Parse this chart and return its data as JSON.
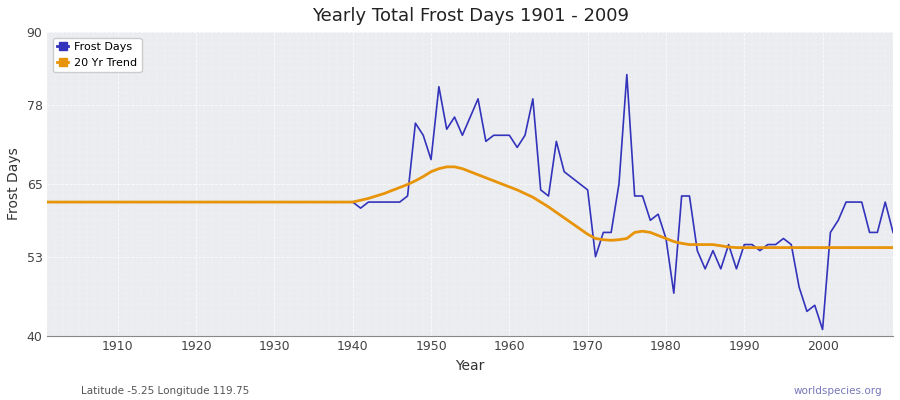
{
  "title": "Yearly Total Frost Days 1901 - 2009",
  "xlabel": "Year",
  "ylabel": "Frost Days",
  "subtitle": "Latitude -5.25 Longitude 119.75",
  "watermark": "worldspecies.org",
  "ylim": [
    40,
    90
  ],
  "xlim": [
    1901,
    2009
  ],
  "yticks": [
    40,
    53,
    65,
    78,
    90
  ],
  "xticks": [
    1910,
    1920,
    1930,
    1940,
    1950,
    1960,
    1970,
    1980,
    1990,
    2000
  ],
  "bg_color": "#eaecf0",
  "fig_color": "#ffffff",
  "line_color": "#3333bb",
  "trend_color": "#e8940a",
  "frost_years": [
    1901,
    1902,
    1903,
    1904,
    1905,
    1906,
    1907,
    1908,
    1909,
    1910,
    1911,
    1912,
    1913,
    1914,
    1915,
    1916,
    1917,
    1918,
    1919,
    1920,
    1921,
    1922,
    1923,
    1924,
    1925,
    1926,
    1927,
    1928,
    1929,
    1930,
    1931,
    1932,
    1933,
    1934,
    1935,
    1936,
    1937,
    1938,
    1939,
    1940,
    1941,
    1942,
    1943,
    1944,
    1945,
    1946,
    1947,
    1948,
    1949,
    1950,
    1951,
    1952,
    1953,
    1954,
    1955,
    1956,
    1957,
    1958,
    1959,
    1960,
    1961,
    1962,
    1963,
    1964,
    1965,
    1966,
    1967,
    1968,
    1969,
    1970,
    1971,
    1972,
    1973,
    1974,
    1975,
    1976,
    1977,
    1978,
    1979,
    1980,
    1981,
    1982,
    1983,
    1984,
    1985,
    1986,
    1987,
    1988,
    1989,
    1990,
    1991,
    1992,
    1993,
    1994,
    1995,
    1996,
    1997,
    1998,
    1999,
    2000,
    2001,
    2002,
    2003,
    2004,
    2005,
    2006,
    2007,
    2008,
    2009
  ],
  "frost_vals": [
    62,
    62,
    62,
    62,
    62,
    62,
    62,
    62,
    62,
    62,
    62,
    62,
    62,
    62,
    62,
    62,
    62,
    62,
    62,
    62,
    62,
    62,
    62,
    62,
    62,
    62,
    62,
    62,
    62,
    62,
    62,
    62,
    62,
    62,
    62,
    62,
    62,
    62,
    62,
    62,
    61,
    62,
    62,
    62,
    62,
    62,
    63,
    75,
    73,
    69,
    81,
    74,
    76,
    73,
    76,
    79,
    72,
    73,
    73,
    73,
    71,
    73,
    79,
    64,
    63,
    72,
    67,
    66,
    65,
    64,
    53,
    57,
    57,
    65,
    83,
    63,
    63,
    59,
    60,
    56,
    47,
    63,
    63,
    54,
    51,
    54,
    51,
    55,
    51,
    55,
    55,
    54,
    55,
    55,
    56,
    55,
    48,
    44,
    45,
    41,
    57,
    59,
    62,
    62,
    62,
    57,
    57,
    62,
    57
  ],
  "trend_years": [
    1901,
    1902,
    1903,
    1904,
    1905,
    1906,
    1907,
    1908,
    1909,
    1910,
    1911,
    1912,
    1913,
    1914,
    1915,
    1916,
    1917,
    1918,
    1919,
    1920,
    1921,
    1922,
    1923,
    1924,
    1925,
    1926,
    1927,
    1928,
    1929,
    1930,
    1931,
    1932,
    1933,
    1934,
    1935,
    1936,
    1937,
    1938,
    1939,
    1940,
    1941,
    1942,
    1943,
    1944,
    1945,
    1946,
    1947,
    1948,
    1949,
    1950,
    1951,
    1952,
    1953,
    1954,
    1955,
    1956,
    1957,
    1958,
    1959,
    1960,
    1961,
    1962,
    1963,
    1964,
    1965,
    1966,
    1967,
    1968,
    1969,
    1970,
    1971,
    1972,
    1973,
    1974,
    1975,
    1976,
    1977,
    1978,
    1979,
    1980,
    1981,
    1982,
    1983,
    1984,
    1985,
    1986,
    1987,
    1988,
    1989,
    1990,
    1991,
    1992,
    1993,
    1994,
    1995,
    1996,
    1997,
    1998,
    1999,
    2000,
    2001,
    2002,
    2003,
    2004,
    2005,
    2006,
    2007,
    2008,
    2009
  ],
  "trend_vals": [
    62,
    62,
    62,
    62,
    62,
    62,
    62,
    62,
    62,
    62,
    62,
    62,
    62,
    62,
    62,
    62,
    62,
    62,
    62,
    62,
    62,
    62,
    62,
    62,
    62,
    62,
    62,
    62,
    62,
    62,
    62,
    62,
    62,
    62,
    62,
    62,
    62,
    62,
    62,
    62,
    62.3,
    62.6,
    63.0,
    63.4,
    63.9,
    64.4,
    64.9,
    65.5,
    66.2,
    67.0,
    67.5,
    67.8,
    67.8,
    67.5,
    67.0,
    66.5,
    66.0,
    65.5,
    65.0,
    64.5,
    64.0,
    63.4,
    62.8,
    62.0,
    61.2,
    60.3,
    59.4,
    58.5,
    57.6,
    56.7,
    56.0,
    55.8,
    55.7,
    55.8,
    56.0,
    57.0,
    57.2,
    57.0,
    56.5,
    56.0,
    55.5,
    55.2,
    55.0,
    55.0,
    55.0,
    55.0,
    54.8,
    54.6,
    54.5,
    54.5,
    54.5,
    54.5,
    54.5,
    54.5,
    54.5,
    54.5,
    54.5,
    54.5,
    54.5,
    54.5,
    54.5,
    54.5,
    54.5,
    54.5,
    54.5,
    54.5,
    54.5,
    54.5,
    54.5
  ]
}
